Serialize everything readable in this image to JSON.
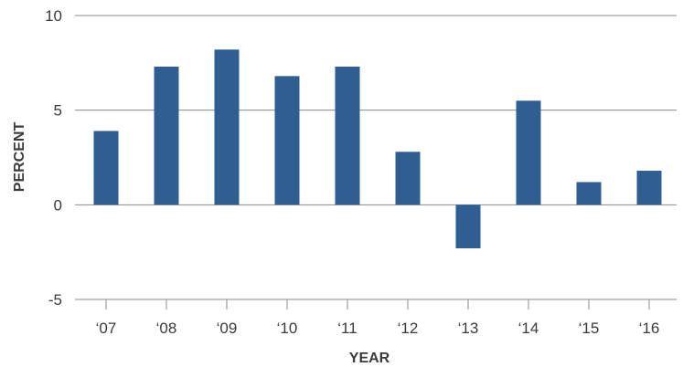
{
  "chart_data": {
    "type": "bar",
    "title": "",
    "xlabel": "YEAR",
    "ylabel": "PERCENT",
    "categories": [
      "‘07",
      "‘08",
      "‘09",
      "‘10",
      "‘11",
      "‘12",
      "‘13",
      "‘14",
      "‘15",
      "‘16"
    ],
    "values": [
      3.9,
      7.3,
      8.2,
      6.8,
      7.3,
      2.8,
      -2.3,
      5.5,
      1.2,
      1.8
    ],
    "ylim": [
      -5,
      10
    ],
    "yticks": [
      "-5",
      "0",
      "5",
      "10"
    ],
    "grid": true,
    "legend": "none",
    "bar_color": "#2f5f92"
  }
}
